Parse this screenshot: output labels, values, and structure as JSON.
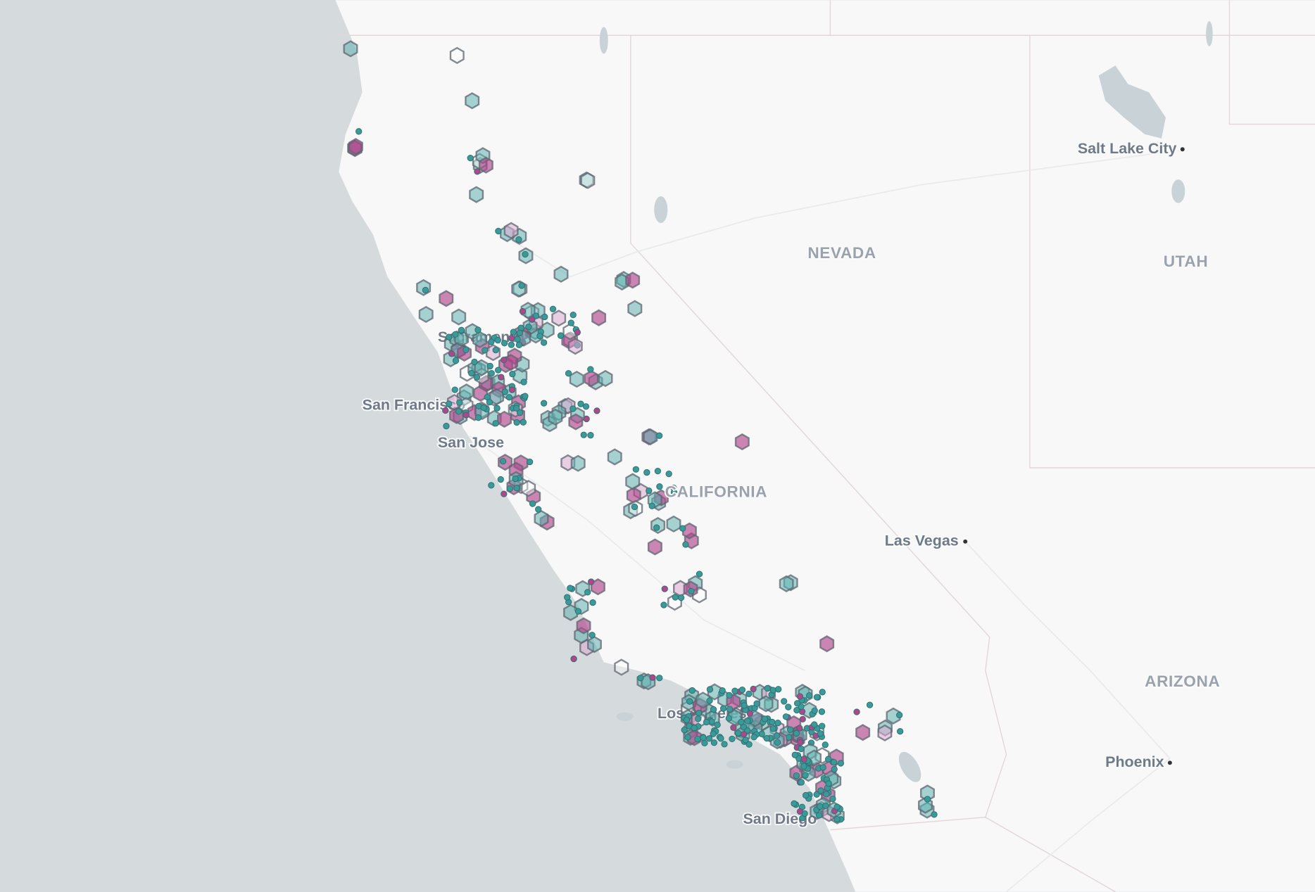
{
  "map": {
    "regions": [
      "NEVADA",
      "UTAH",
      "ARIZONA",
      "CALIFORNIA"
    ],
    "cities": [
      "Salt Lake City",
      "Las Vegas",
      "Phoenix",
      "Sacramento",
      "San Francisco",
      "San Jose",
      "Los Angeles",
      "San Diego"
    ]
  }
}
